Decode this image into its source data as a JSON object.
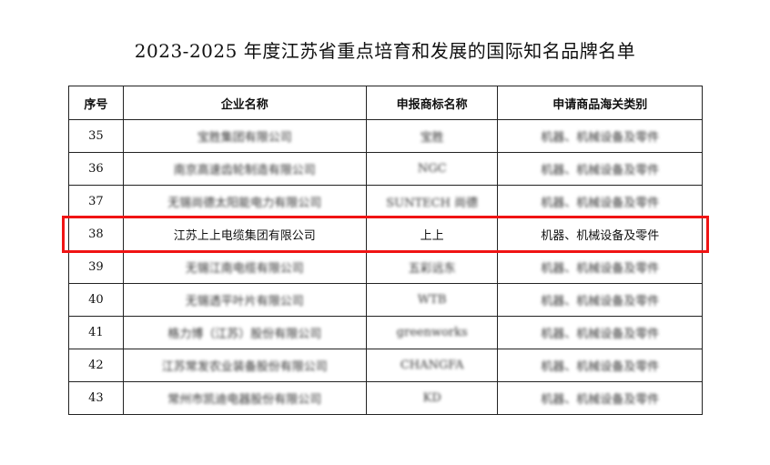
{
  "title": "2023-2025 年度江苏省重点培育和发展的国际知名品牌名单",
  "table": {
    "headers": [
      "序号",
      "企业名称",
      "申报商标名称",
      "申请商品海关类别"
    ],
    "rows": [
      {
        "no": "35",
        "company": "宝胜集团有限公司",
        "brand": "宝胜",
        "category": "机器、机械设备及零件",
        "blurred": true
      },
      {
        "no": "36",
        "company": "南京高速齿轮制造有限公司",
        "brand": "NGC",
        "category": "机器、机械设备及零件",
        "blurred": true
      },
      {
        "no": "37",
        "company": "无锡尚德太阳能电力有限公司",
        "brand": "SUNTECH 尚德",
        "category": "机器、机械设备及零件",
        "blurred": true
      },
      {
        "no": "38",
        "company": "江苏上上电缆集团有限公司",
        "brand": "上上",
        "category": "机器、机械设备及零件",
        "blurred": false
      },
      {
        "no": "39",
        "company": "无锡江南电缆有限公司",
        "brand": "五彩远东",
        "category": "机器、机械设备及零件",
        "blurred": true
      },
      {
        "no": "40",
        "company": "无锡透平叶片有限公司",
        "brand": "WTB",
        "category": "机器、机械设备及零件",
        "blurred": true
      },
      {
        "no": "41",
        "company": "格力博（江苏）股份有限公司",
        "brand": "greenworks",
        "category": "机器、机械设备及零件",
        "blurred": true
      },
      {
        "no": "42",
        "company": "江苏常发农业装备股份有限公司",
        "brand": "CHANGFA",
        "category": "机器、机械设备及零件",
        "blurred": true
      },
      {
        "no": "43",
        "company": "常州市凯迪电器股份有限公司",
        "brand": "KD",
        "category": "机器、机械设备及零件",
        "blurred": true
      }
    ]
  },
  "highlight": {
    "row_no": "38",
    "color": "#f01414"
  }
}
